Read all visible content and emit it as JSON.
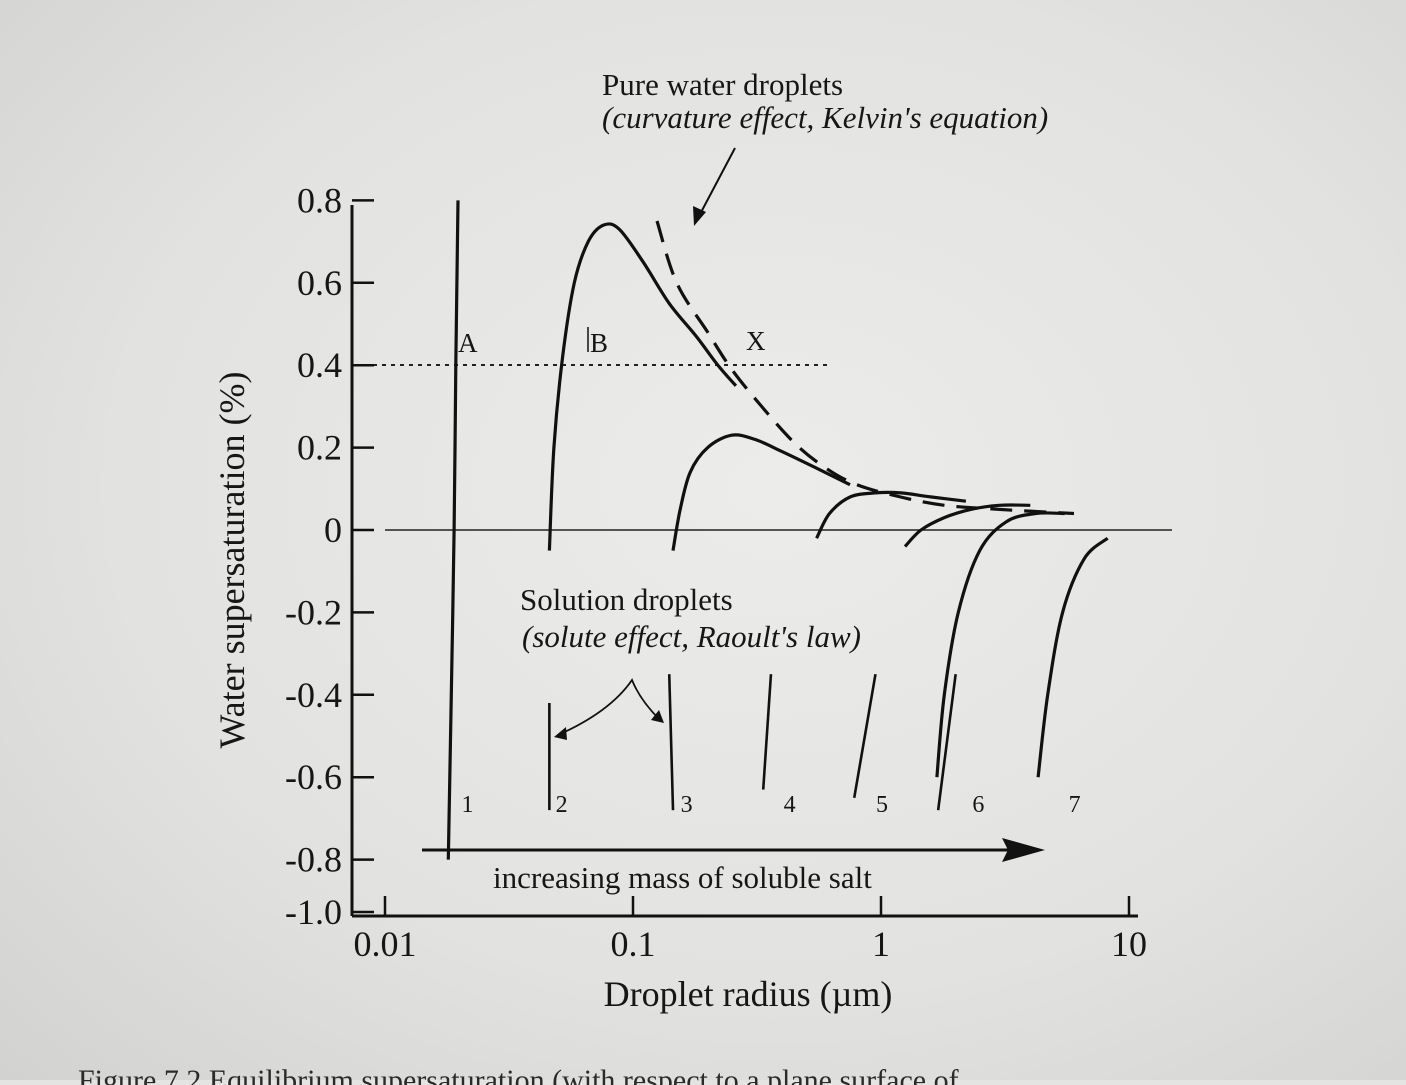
{
  "chart_data": {
    "type": "line",
    "title": "",
    "xlabel": "Droplet radius (µm)",
    "ylabel": "Water supersaturation (%)",
    "x_scale": "log",
    "xlim": [
      0.01,
      10
    ],
    "ylim": [
      -1.0,
      0.8
    ],
    "x_ticks": [
      {
        "value": 0.01,
        "label": "0.01"
      },
      {
        "value": 0.1,
        "label": "0.1"
      },
      {
        "value": 1,
        "label": "1"
      },
      {
        "value": 10,
        "label": "10"
      }
    ],
    "y_ticks": [
      {
        "value": 0.8,
        "label": "0.8"
      },
      {
        "value": 0.6,
        "label": "0.6"
      },
      {
        "value": 0.4,
        "label": "0.4"
      },
      {
        "value": 0.2,
        "label": "0.2"
      },
      {
        "value": 0,
        "label": "0"
      },
      {
        "value": -0.2,
        "label": "-0.2"
      },
      {
        "value": -0.4,
        "label": "-0.4"
      },
      {
        "value": -0.6,
        "label": "-0.6"
      },
      {
        "value": -0.8,
        "label": "-0.8"
      },
      {
        "value": -1.0,
        "label": "-1.0"
      }
    ],
    "kelvin_curve": {
      "name": "Pure water droplets",
      "style": "dashed",
      "points": [
        [
          0.125,
          0.75
        ],
        [
          0.15,
          0.6
        ],
        [
          0.2,
          0.48
        ],
        [
          0.25,
          0.39
        ],
        [
          0.33,
          0.3
        ],
        [
          0.45,
          0.21
        ],
        [
          0.6,
          0.15
        ],
        [
          0.8,
          0.11
        ],
        [
          1.2,
          0.08
        ],
        [
          1.8,
          0.06
        ],
        [
          3.0,
          0.05
        ],
        [
          6.0,
          0.04
        ]
      ]
    },
    "solution_curves": [
      {
        "name": "1",
        "points": [
          [
            0.018,
            -0.8
          ],
          [
            0.0185,
            -0.4
          ],
          [
            0.019,
            0.0
          ],
          [
            0.0193,
            0.4
          ],
          [
            0.0197,
            0.8
          ]
        ]
      },
      {
        "name": "2",
        "points": [
          [
            0.046,
            -0.05
          ],
          [
            0.048,
            0.2
          ],
          [
            0.052,
            0.42
          ],
          [
            0.058,
            0.6
          ],
          [
            0.066,
            0.7
          ],
          [
            0.076,
            0.74
          ],
          [
            0.088,
            0.73
          ],
          [
            0.11,
            0.65
          ],
          [
            0.14,
            0.55
          ],
          [
            0.18,
            0.47
          ],
          [
            0.22,
            0.4
          ],
          [
            0.26,
            0.35
          ]
        ]
      },
      {
        "name": "3",
        "points": [
          [
            0.145,
            -0.05
          ],
          [
            0.155,
            0.05
          ],
          [
            0.17,
            0.14
          ],
          [
            0.2,
            0.2
          ],
          [
            0.25,
            0.23
          ],
          [
            0.31,
            0.22
          ],
          [
            0.4,
            0.19
          ],
          [
            0.55,
            0.15
          ],
          [
            0.75,
            0.11
          ]
        ]
      },
      {
        "name": "4",
        "points": [
          [
            0.55,
            -0.02
          ],
          [
            0.62,
            0.04
          ],
          [
            0.75,
            0.08
          ],
          [
            0.95,
            0.09
          ],
          [
            1.2,
            0.09
          ],
          [
            1.6,
            0.08
          ],
          [
            2.2,
            0.07
          ]
        ]
      },
      {
        "name": "5",
        "points": [
          [
            1.25,
            -0.04
          ],
          [
            1.45,
            0.0
          ],
          [
            1.8,
            0.03
          ],
          [
            2.3,
            0.05
          ],
          [
            3.0,
            0.06
          ],
          [
            4.0,
            0.06
          ]
        ]
      },
      {
        "name": "6",
        "points": [
          [
            1.68,
            -0.6
          ],
          [
            1.8,
            -0.4
          ],
          [
            2.05,
            -0.2
          ],
          [
            2.5,
            -0.05
          ],
          [
            3.2,
            0.02
          ],
          [
            4.2,
            0.04
          ],
          [
            5.5,
            0.04
          ]
        ]
      },
      {
        "name": "7",
        "points": [
          [
            4.3,
            -0.6
          ],
          [
            4.7,
            -0.4
          ],
          [
            5.4,
            -0.2
          ],
          [
            6.6,
            -0.07
          ],
          [
            8.2,
            -0.02
          ]
        ]
      }
    ],
    "annotations": {
      "kelvin_title": "Pure water droplets",
      "kelvin_subtitle": "(curvature effect, Kelvin's equation)",
      "raoult_title": "Solution droplets",
      "raoult_subtitle": "(solute effect, Raoult's law)",
      "arrow_label": "increasing mass of soluble salt",
      "point_a": "A",
      "point_b": "B",
      "point_x": "X",
      "dotted_line_value": 0.4
    }
  },
  "caption_fragment": "Figure 7.2  Equilibrium supersaturation (with respect to a plane surface of"
}
